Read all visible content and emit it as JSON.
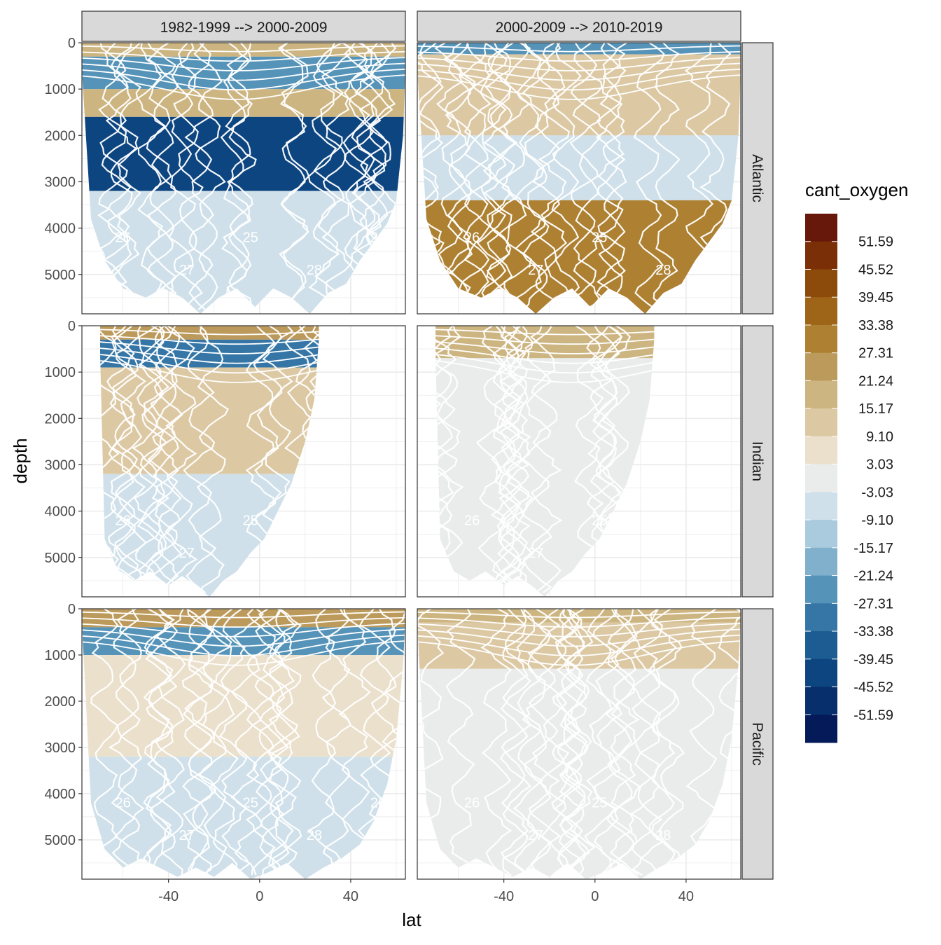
{
  "chart_data": {
    "type": "heatmap",
    "title": "",
    "xlabel": "lat",
    "ylabel": "depth",
    "xlim": [
      -78,
      64
    ],
    "ylim": [
      5850,
      0
    ],
    "x_ticks": [
      -40,
      0,
      40
    ],
    "x_tick_labels": [
      "-40",
      "0",
      "40"
    ],
    "y_ticks": [
      0,
      1000,
      2000,
      3000,
      4000,
      5000
    ],
    "y_tick_labels": [
      "0",
      "1000",
      "2000",
      "3000",
      "4000",
      "5000"
    ],
    "column_facets": [
      "1982-1999 --> 2000-2009",
      "2000-2009 --> 2010-2019"
    ],
    "row_facets": [
      "Atlantic",
      "Indian",
      "Pacific"
    ],
    "grid": true,
    "legend": {
      "title": "cant_oxygen",
      "position": "right",
      "labels": [
        "51.59",
        "45.52",
        "39.45",
        "33.38",
        "27.31",
        "21.24",
        "15.17",
        "9.10",
        "3.03",
        "-3.03",
        "-9.10",
        "-15.17",
        "-21.24",
        "-27.31",
        "-33.38",
        "-39.45",
        "-45.52",
        "-51.59"
      ],
      "colors": [
        "#67180a",
        "#7a2f06",
        "#8c4a0b",
        "#9e6518",
        "#ad8032",
        "#bc9a5c",
        "#cdb581",
        "#dcc9a4",
        "#ebe0cc",
        "#eaeceb",
        "#cfe0ea",
        "#aacbdd",
        "#80b0cc",
        "#5593b8",
        "#3576a6",
        "#1c5c92",
        "#0d4580",
        "#072f6c",
        "#041a59"
      ]
    },
    "contour_labels": [
      "26",
      "27",
      "25",
      "28"
    ],
    "panels": [
      {
        "row": 0,
        "col": 0,
        "depth_bands": [
          {
            "from": 0,
            "to": 300,
            "value": 20
          },
          {
            "from": 300,
            "to": 1000,
            "value": -25
          },
          {
            "from": 1000,
            "to": 1600,
            "value": 18
          },
          {
            "from": 1600,
            "to": 3200,
            "value": -45
          },
          {
            "from": 3200,
            "to": 5850,
            "value": -8
          }
        ]
      },
      {
        "row": 0,
        "col": 1,
        "depth_bands": [
          {
            "from": 0,
            "to": 250,
            "value": -25
          },
          {
            "from": 250,
            "to": 2000,
            "value": 12
          },
          {
            "from": 2000,
            "to": 3400,
            "value": -5
          },
          {
            "from": 3400,
            "to": 5850,
            "value": 30
          }
        ]
      },
      {
        "row": 1,
        "col": 0,
        "depth_bands": [
          {
            "from": 0,
            "to": 300,
            "value": 22
          },
          {
            "from": 300,
            "to": 900,
            "value": -30
          },
          {
            "from": 900,
            "to": 3200,
            "value": 10
          },
          {
            "from": 3200,
            "to": 5850,
            "value": -8
          }
        ]
      },
      {
        "row": 1,
        "col": 1,
        "depth_bands": [
          {
            "from": 0,
            "to": 700,
            "value": 18
          },
          {
            "from": 700,
            "to": 5850,
            "value": 0
          }
        ]
      },
      {
        "row": 2,
        "col": 0,
        "depth_bands": [
          {
            "from": 0,
            "to": 400,
            "value": 22
          },
          {
            "from": 400,
            "to": 1000,
            "value": -25
          },
          {
            "from": 1000,
            "to": 3200,
            "value": 9
          },
          {
            "from": 3200,
            "to": 5850,
            "value": -5
          }
        ]
      },
      {
        "row": 2,
        "col": 1,
        "depth_bands": [
          {
            "from": 0,
            "to": 300,
            "value": 20
          },
          {
            "from": 300,
            "to": 1300,
            "value": 10
          },
          {
            "from": 1300,
            "to": 5850,
            "value": 0
          }
        ]
      }
    ]
  }
}
